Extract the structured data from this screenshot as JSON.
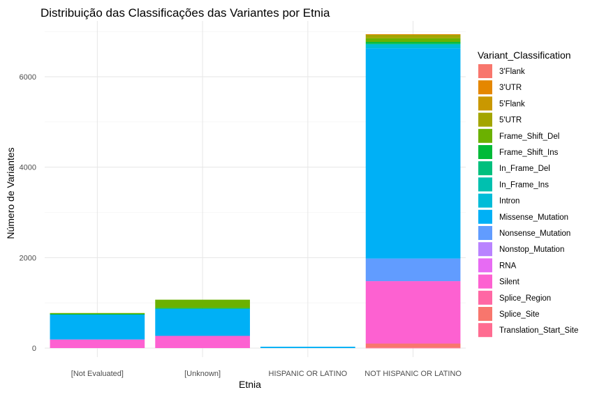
{
  "chart_data": {
    "type": "bar",
    "stacked": true,
    "title": "Distribuição das Classificações das Variantes por Etnia",
    "xlabel": "Etnia",
    "ylabel": "Número de Variantes",
    "ylim": [
      0,
      7000
    ],
    "yticks": [
      0,
      2000,
      4000,
      6000
    ],
    "grid": true,
    "legend_position": "right",
    "legend_title": "Variant_Classification",
    "categories": [
      "[Not Evaluated]",
      "[Unknown]",
      "HISPANIC OR LATINO",
      "NOT HISPANIC OR LATINO"
    ],
    "series": [
      {
        "name": "3'Flank",
        "color": "#F8766D",
        "values": [
          0,
          0,
          0,
          0
        ]
      },
      {
        "name": "3'UTR",
        "color": "#E58700",
        "values": [
          0,
          0,
          0,
          10
        ]
      },
      {
        "name": "5'Flank",
        "color": "#C99800",
        "values": [
          0,
          0,
          0,
          0
        ]
      },
      {
        "name": "5'UTR",
        "color": "#A3A500",
        "values": [
          0,
          0,
          0,
          80
        ]
      },
      {
        "name": "Frame_Shift_Del",
        "color": "#6BB100",
        "values": [
          20,
          180,
          0,
          80
        ]
      },
      {
        "name": "Frame_Shift_Ins",
        "color": "#00BA38",
        "values": [
          5,
          20,
          0,
          40
        ]
      },
      {
        "name": "In_Frame_Del",
        "color": "#00BF7D",
        "values": [
          0,
          0,
          0,
          0
        ]
      },
      {
        "name": "In_Frame_Ins",
        "color": "#00C0AF",
        "values": [
          0,
          0,
          0,
          20
        ]
      },
      {
        "name": "Intron",
        "color": "#00BCD8",
        "values": [
          0,
          0,
          0,
          80
        ]
      },
      {
        "name": "Missense_Mutation",
        "color": "#00B0F6",
        "values": [
          560,
          600,
          30,
          4650
        ]
      },
      {
        "name": "Nonsense_Mutation",
        "color": "#619CFF",
        "values": [
          0,
          0,
          0,
          500
        ]
      },
      {
        "name": "Nonstop_Mutation",
        "color": "#B983FF",
        "values": [
          0,
          0,
          0,
          0
        ]
      },
      {
        "name": "RNA",
        "color": "#E76BF3",
        "values": [
          0,
          0,
          0,
          0
        ]
      },
      {
        "name": "Silent",
        "color": "#FD61D1",
        "values": [
          190,
          270,
          0,
          1380
        ]
      },
      {
        "name": "Splice_Region",
        "color": "#FF67A4",
        "values": [
          0,
          0,
          0,
          0
        ]
      },
      {
        "name": "Splice_Site",
        "color": "#F8766D",
        "values": [
          0,
          0,
          0,
          90
        ]
      },
      {
        "name": "Translation_Start_Site",
        "color": "#FF6C91",
        "values": [
          0,
          0,
          0,
          10
        ]
      }
    ]
  }
}
